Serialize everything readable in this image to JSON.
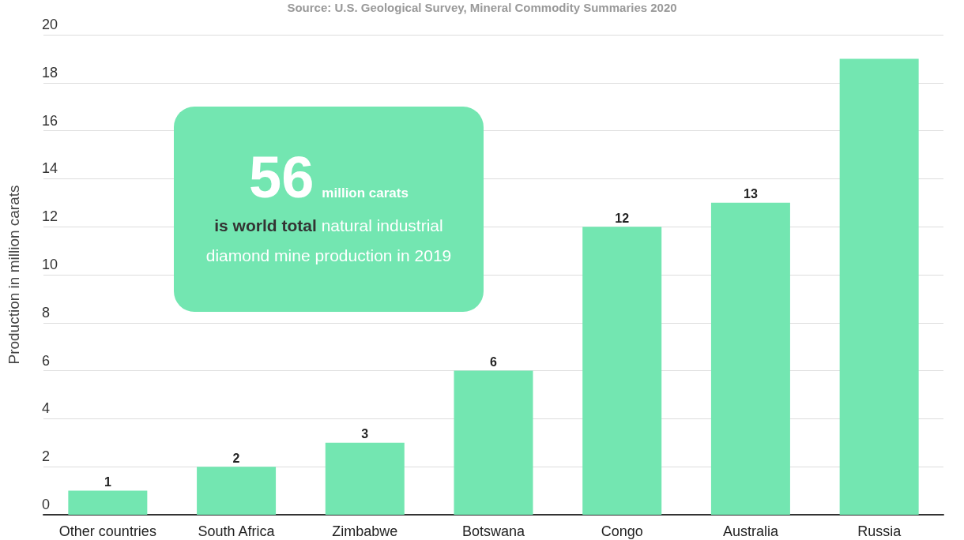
{
  "chart_data": {
    "type": "bar",
    "ylabel": "Production in million carats",
    "categories": [
      "Other countries",
      "South Africa",
      "Zimbabwe",
      "Botswana",
      "Congo",
      "Australia",
      "Russia"
    ],
    "values": [
      1,
      2,
      3,
      6,
      12,
      13,
      19
    ],
    "value_labels": [
      "1",
      "2",
      "3",
      "6",
      "12",
      "13",
      null
    ],
    "color": "#73e6b1",
    "ylim": [
      0,
      20
    ],
    "yticks": [
      0,
      2,
      4,
      6,
      8,
      10,
      12,
      14,
      16,
      18,
      20
    ],
    "grid": "y",
    "annotations": [
      "Source: U.S. Geological Survey, Mineral Commodity Summaries 2020",
      "56",
      "million carats",
      "is world total",
      "natural industrial diamond mine production in 2019"
    ]
  }
}
